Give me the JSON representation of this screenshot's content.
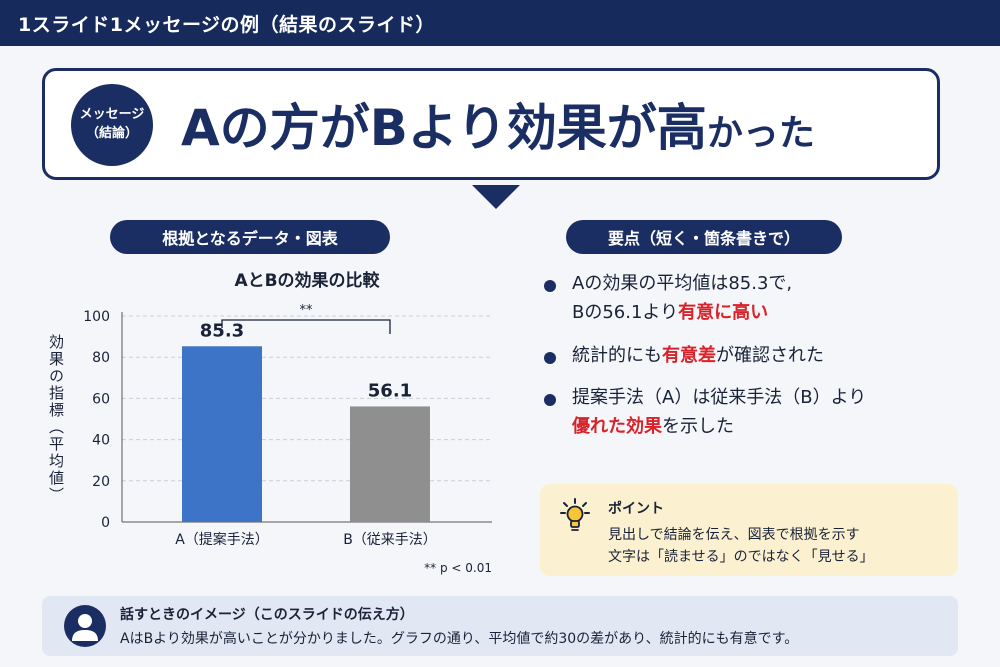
{
  "header": {
    "title": "1スライド1メッセージの例（結果のスライド）"
  },
  "message": {
    "badge_line1": "メッセージ",
    "badge_line2": "（結論）",
    "headline": "Aの方がBより効果が高",
    "headline_small": "かった"
  },
  "left_section": {
    "label": "根拠となるデータ・図表"
  },
  "right_section": {
    "label": "要点（短く・箇条書きで）"
  },
  "chart_data": {
    "type": "bar",
    "title": "AとBの効果の比較",
    "categories": [
      "A（提案手法）",
      "B（従来手法）"
    ],
    "values": [
      85.3,
      56.1
    ],
    "value_labels": [
      "85.3",
      "56.1"
    ],
    "colors": [
      "#3e74c8",
      "#8f8f8f"
    ],
    "ylabel": "効果の指標（平均値）",
    "ylim": [
      0,
      100
    ],
    "yticks": [
      0,
      20,
      40,
      60,
      80,
      100
    ],
    "grid": true,
    "significance_marker": "**",
    "footnote": "** p < 0.01"
  },
  "key_points": [
    {
      "lines": [
        [
          {
            "text": "Aの効果の平均値は85.3で,",
            "em": false
          }
        ],
        [
          {
            "text": "Bの56.1より",
            "em": false
          },
          {
            "text": "有意に高い",
            "em": true
          }
        ]
      ]
    },
    {
      "lines": [
        [
          {
            "text": "統計的にも",
            "em": false
          },
          {
            "text": "有意差",
            "em": true
          },
          {
            "text": "が確認された",
            "em": false
          }
        ]
      ]
    },
    {
      "lines": [
        [
          {
            "text": "提案手法（A）は従来手法（B）より",
            "em": false
          }
        ],
        [
          {
            "text": "優れた効果",
            "em": true
          },
          {
            "text": "を示した",
            "em": false
          }
        ]
      ]
    }
  ],
  "tip": {
    "icon": "lightbulb-icon",
    "title": "ポイント",
    "line1": "見出しで結論を伝え、図表で根拠を示す",
    "line2": "文字は「読ませる」のではなく「見せる」"
  },
  "speaking": {
    "icon": "person-icon",
    "title": "話すときのイメージ（このスライドの伝え方）",
    "text": "AはBより効果が高いことが分かりました。グラフの通り、平均値で約30の差があり、統計的にも有意です。"
  },
  "colors": {
    "navy": "#1b2e63",
    "accent_red": "#d8232a",
    "bar_a": "#3e74c8",
    "bar_b": "#8f8f8f",
    "tip_bg": "#fbf1d0",
    "bottom_bg": "#e2e8f3"
  }
}
